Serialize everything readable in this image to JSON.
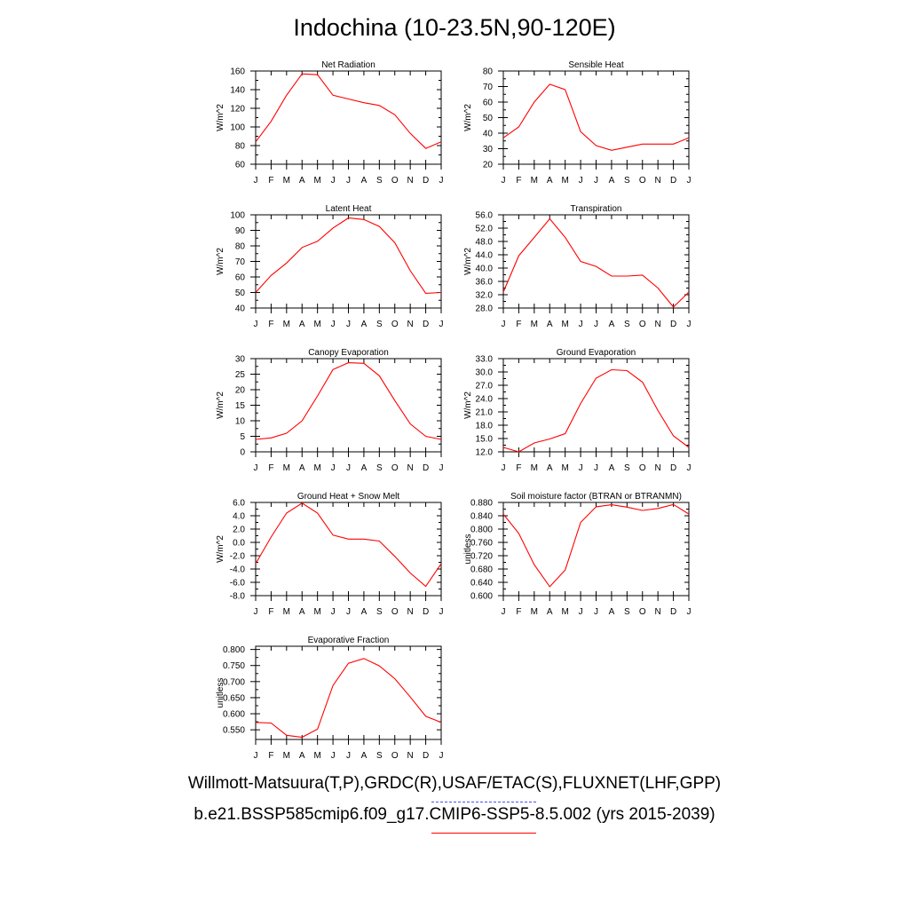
{
  "title": "Indochina (10-23.5N,90-120E)",
  "footer": {
    "obs_label": "Willmott-Matsuura(T,P),GRDC(R),USAF/ETAC(S),FLUXNET(LHF,GPP)",
    "model_label": "b.e21.BSSP585cmip6.f09_g17.CMIP6-SSP5-8.5.002 (yrs 2015-2039)",
    "obs_line_color": "#4b4bff",
    "model_line_color": "#ff0000"
  },
  "chart_data": [
    {
      "type": "line",
      "title": "Net Radiation",
      "ylabel": "W/m^2",
      "categories": [
        "J",
        "F",
        "M",
        "A",
        "M",
        "J",
        "J",
        "A",
        "S",
        "O",
        "N",
        "D",
        "J"
      ],
      "values": [
        84,
        106,
        134,
        157,
        156,
        134,
        130,
        126,
        123,
        113,
        93,
        77,
        84
      ],
      "ylim": [
        60,
        160
      ],
      "yticks": [
        "60",
        "80",
        "100",
        "120",
        "140",
        "160"
      ],
      "yticks_num": [
        60,
        80,
        100,
        120,
        140,
        160
      ],
      "line_color": "#ff0000"
    },
    {
      "type": "line",
      "title": "Sensible Heat",
      "ylabel": "W/m^2",
      "categories": [
        "J",
        "F",
        "M",
        "A",
        "M",
        "J",
        "J",
        "A",
        "S",
        "O",
        "N",
        "D",
        "J"
      ],
      "values": [
        37,
        44,
        60,
        71.5,
        68,
        41,
        32,
        29,
        31,
        33,
        33,
        33,
        37
      ],
      "ylim": [
        20,
        80
      ],
      "yticks": [
        "20",
        "30",
        "40",
        "50",
        "60",
        "70",
        "80"
      ],
      "yticks_num": [
        20,
        30,
        40,
        50,
        60,
        70,
        80
      ],
      "line_color": "#ff0000"
    },
    {
      "type": "line",
      "title": "Latent Heat",
      "ylabel": "W/m^2",
      "categories": [
        "J",
        "F",
        "M",
        "A",
        "M",
        "J",
        "J",
        "A",
        "S",
        "O",
        "N",
        "D",
        "J"
      ],
      "values": [
        50,
        61,
        69,
        79,
        83,
        91.5,
        98,
        97,
        92.5,
        82,
        64,
        49.5,
        50
      ],
      "ylim": [
        40,
        100
      ],
      "yticks": [
        "40",
        "50",
        "60",
        "70",
        "80",
        "90",
        "100"
      ],
      "yticks_num": [
        40,
        50,
        60,
        70,
        80,
        90,
        100
      ],
      "line_color": "#ff0000"
    },
    {
      "type": "line",
      "title": "Transpiration",
      "ylabel": "W/m^2",
      "categories": [
        "J",
        "F",
        "M",
        "A",
        "M",
        "J",
        "J",
        "A",
        "S",
        "O",
        "N",
        "D",
        "J"
      ],
      "values": [
        32.8,
        43.7,
        49.2,
        54.8,
        49.2,
        42.0,
        40.5,
        37.6,
        37.6,
        37.9,
        34.0,
        28.3,
        32.8
      ],
      "ylim": [
        28,
        56
      ],
      "yticks": [
        "28.0",
        "32.0",
        "36.0",
        "40.0",
        "44.0",
        "48.0",
        "52.0",
        "56.0"
      ],
      "yticks_num": [
        28,
        32,
        36,
        40,
        44,
        48,
        52,
        56
      ],
      "line_color": "#ff0000"
    },
    {
      "type": "line",
      "title": "Canopy Evaporation",
      "ylabel": "W/m^2",
      "categories": [
        "J",
        "F",
        "M",
        "A",
        "M",
        "J",
        "J",
        "A",
        "S",
        "O",
        "N",
        "D",
        "J"
      ],
      "values": [
        4,
        4.5,
        6,
        10,
        18,
        26.5,
        28.7,
        28.5,
        24.5,
        16.5,
        9,
        5,
        4
      ],
      "ylim": [
        0,
        30
      ],
      "yticks": [
        "0",
        "5",
        "10",
        "15",
        "20",
        "25",
        "30"
      ],
      "yticks_num": [
        0,
        5,
        10,
        15,
        20,
        25,
        30
      ],
      "line_color": "#ff0000"
    },
    {
      "type": "line",
      "title": "Ground Evaporation",
      "ylabel": "W/m^2",
      "categories": [
        "J",
        "F",
        "M",
        "A",
        "M",
        "J",
        "J",
        "A",
        "S",
        "O",
        "N",
        "D",
        "J"
      ],
      "values": [
        13.0,
        12.0,
        14.0,
        14.9,
        16.1,
        22.9,
        28.6,
        30.5,
        30.3,
        27.7,
        21.3,
        15.6,
        13.0
      ],
      "ylim": [
        12,
        33
      ],
      "yticks": [
        "12.0",
        "15.0",
        "18.0",
        "21.0",
        "24.0",
        "27.0",
        "30.0",
        "33.0"
      ],
      "yticks_num": [
        12,
        15,
        18,
        21,
        24,
        27,
        30,
        33
      ],
      "line_color": "#ff0000"
    },
    {
      "type": "line",
      "title": "Ground Heat + Snow Melt",
      "ylabel": "W/m^2",
      "categories": [
        "J",
        "F",
        "M",
        "A",
        "M",
        "J",
        "J",
        "A",
        "S",
        "O",
        "N",
        "D",
        "J"
      ],
      "values": [
        -3.2,
        0.8,
        4.4,
        5.9,
        4.4,
        1.1,
        0.5,
        0.5,
        0.2,
        -2.1,
        -4.6,
        -6.6,
        -3.2
      ],
      "ylim": [
        -8,
        6
      ],
      "yticks": [
        "-8.0",
        "-6.0",
        "-4.0",
        "-2.0",
        "0.0",
        "2.0",
        "4.0",
        "6.0"
      ],
      "yticks_num": [
        -8,
        -6,
        -4,
        -2,
        0,
        2,
        4,
        6
      ],
      "line_color": "#ff0000"
    },
    {
      "type": "line",
      "title": "Soil moisture factor (BTRAN or BTRANMN)",
      "ylabel": "unitless",
      "categories": [
        "J",
        "F",
        "M",
        "A",
        "M",
        "J",
        "J",
        "A",
        "S",
        "O",
        "N",
        "D",
        "J"
      ],
      "values": [
        0.845,
        0.787,
        0.693,
        0.627,
        0.677,
        0.82,
        0.867,
        0.873,
        0.866,
        0.856,
        0.862,
        0.874,
        0.845
      ],
      "ylim": [
        0.6,
        0.88
      ],
      "yticks": [
        "0.600",
        "0.640",
        "0.680",
        "0.720",
        "0.760",
        "0.800",
        "0.840",
        "0.880"
      ],
      "yticks_num": [
        0.6,
        0.64,
        0.68,
        0.72,
        0.76,
        0.8,
        0.84,
        0.88
      ],
      "line_color": "#ff0000"
    },
    {
      "type": "line",
      "title": "Evaporative Fraction",
      "ylabel": "unitless",
      "categories": [
        "J",
        "F",
        "M",
        "A",
        "M",
        "J",
        "J",
        "A",
        "S",
        "O",
        "N",
        "D",
        "J"
      ],
      "values": [
        0.573,
        0.571,
        0.533,
        0.527,
        0.552,
        0.688,
        0.757,
        0.772,
        0.749,
        0.709,
        0.652,
        0.592,
        0.573
      ],
      "ylim": [
        0.52,
        0.81
      ],
      "yticks": [
        "0.550",
        "0.600",
        "0.650",
        "0.700",
        "0.750",
        "0.800"
      ],
      "yticks_num": [
        0.55,
        0.6,
        0.65,
        0.7,
        0.75,
        0.8
      ],
      "line_color": "#ff0000"
    }
  ]
}
